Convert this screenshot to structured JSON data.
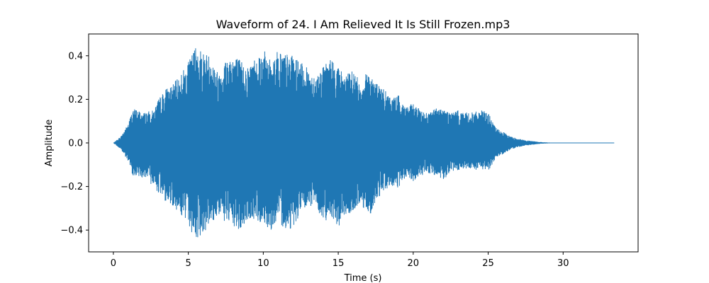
{
  "chart_data": {
    "type": "area",
    "title": "Waveform of 24. I Am Relieved It Is Still Frozen.mp3",
    "xlabel": "Time (s)",
    "ylabel": "Amplitude",
    "xlim": [
      -1.65,
      35.0
    ],
    "ylim": [
      -0.5,
      0.5
    ],
    "x_ticks": [
      0,
      5,
      10,
      15,
      20,
      25,
      30
    ],
    "x_tick_labels": [
      "0",
      "5",
      "10",
      "15",
      "20",
      "25",
      "30"
    ],
    "y_ticks": [
      -0.4,
      -0.2,
      0.0,
      0.2,
      0.4
    ],
    "y_tick_labels": [
      "−0.4",
      "−0.2",
      "0.0",
      "0.2",
      "0.4"
    ],
    "grid": false,
    "color": "#1f77b4",
    "duration_s": 33.4,
    "series": [
      {
        "x": [
          0.0,
          0.5,
          1.0,
          1.3,
          2.0,
          2.7,
          3.0,
          3.5,
          4.0,
          4.5,
          5.0,
          5.5,
          6.0,
          6.5,
          7.0,
          7.5,
          8.0,
          8.5,
          9.0,
          9.5,
          10.0,
          10.5,
          11.0,
          11.5,
          12.0,
          12.5,
          13.0,
          13.5,
          14.0,
          14.5,
          15.0,
          15.5,
          16.0,
          16.5,
          17.0,
          17.5,
          18.0,
          18.5,
          19.0,
          19.5,
          20.0,
          20.5,
          21.0,
          21.5,
          22.0,
          22.5,
          23.0,
          23.5,
          24.0,
          24.5,
          25.0,
          25.5,
          26.0,
          26.5,
          27.0,
          27.5,
          28.0,
          28.5,
          29.0,
          30.0,
          31.0,
          32.0,
          33.4
        ],
        "y_max": [
          0.0,
          0.03,
          0.09,
          0.16,
          0.14,
          0.15,
          0.2,
          0.25,
          0.27,
          0.32,
          0.37,
          0.45,
          0.42,
          0.4,
          0.32,
          0.39,
          0.41,
          0.38,
          0.35,
          0.4,
          0.43,
          0.38,
          0.43,
          0.41,
          0.4,
          0.37,
          0.34,
          0.31,
          0.35,
          0.39,
          0.35,
          0.31,
          0.34,
          0.27,
          0.34,
          0.28,
          0.25,
          0.21,
          0.22,
          0.17,
          0.18,
          0.15,
          0.14,
          0.16,
          0.16,
          0.14,
          0.15,
          0.14,
          0.14,
          0.15,
          0.14,
          0.07,
          0.05,
          0.03,
          0.02,
          0.012,
          0.008,
          0.004,
          0.002,
          0.001,
          0.001,
          0.001,
          0.001
        ],
        "y_min": [
          0.0,
          -0.03,
          -0.09,
          -0.15,
          -0.16,
          -0.2,
          -0.23,
          -0.27,
          -0.29,
          -0.33,
          -0.38,
          -0.45,
          -0.41,
          -0.38,
          -0.33,
          -0.37,
          -0.39,
          -0.41,
          -0.35,
          -0.36,
          -0.37,
          -0.4,
          -0.36,
          -0.4,
          -0.39,
          -0.32,
          -0.3,
          -0.28,
          -0.37,
          -0.33,
          -0.39,
          -0.33,
          -0.33,
          -0.27,
          -0.35,
          -0.27,
          -0.22,
          -0.2,
          -0.21,
          -0.16,
          -0.18,
          -0.15,
          -0.14,
          -0.15,
          -0.18,
          -0.13,
          -0.13,
          -0.12,
          -0.13,
          -0.12,
          -0.13,
          -0.07,
          -0.05,
          -0.03,
          -0.02,
          -0.012,
          -0.008,
          -0.004,
          -0.002,
          -0.001,
          -0.001,
          -0.001,
          -0.001
        ]
      }
    ]
  }
}
